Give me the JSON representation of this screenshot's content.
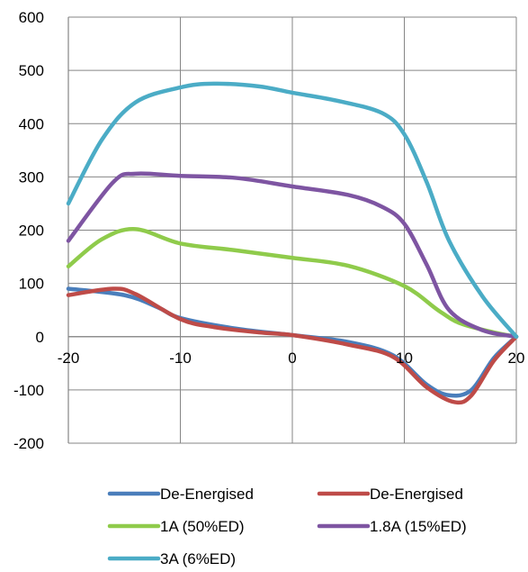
{
  "chart_data": {
    "type": "line",
    "title": "",
    "xlabel": "",
    "ylabel": "",
    "xlim": [
      -20,
      20
    ],
    "ylim": [
      -200,
      600
    ],
    "x_ticks": [
      "-20",
      "-10",
      "0",
      "10",
      "20"
    ],
    "y_ticks": [
      "600",
      "500",
      "400",
      "300",
      "200",
      "100",
      "0",
      "-100",
      "-200"
    ],
    "grid": true,
    "legend_position": "bottom",
    "series": [
      {
        "name": "De-Energised",
        "color": "#4a7ebb",
        "points": [
          [
            -20,
            90
          ],
          [
            -15,
            78
          ],
          [
            -12,
            55
          ],
          [
            -10,
            35
          ],
          [
            -5,
            15
          ],
          [
            0,
            3
          ],
          [
            5,
            -10
          ],
          [
            9,
            -35
          ],
          [
            12,
            -90
          ],
          [
            14,
            -110
          ],
          [
            16,
            -100
          ],
          [
            18,
            -40
          ],
          [
            20,
            0
          ]
        ]
      },
      {
        "name": "De-Energised",
        "color": "#be4b48",
        "points": [
          [
            -20,
            78
          ],
          [
            -16,
            90
          ],
          [
            -14,
            80
          ],
          [
            -10,
            33
          ],
          [
            -7,
            18
          ],
          [
            -3,
            8
          ],
          [
            0,
            3
          ],
          [
            5,
            -15
          ],
          [
            9,
            -38
          ],
          [
            12,
            -95
          ],
          [
            14.5,
            -123
          ],
          [
            16,
            -110
          ],
          [
            18,
            -45
          ],
          [
            20,
            0
          ]
        ]
      },
      {
        "name": "1A (50%ED)",
        "color": "#8fcb4b",
        "points": [
          [
            -20,
            132
          ],
          [
            -17,
            183
          ],
          [
            -14,
            202
          ],
          [
            -10,
            175
          ],
          [
            -5,
            162
          ],
          [
            0,
            148
          ],
          [
            5,
            133
          ],
          [
            10,
            95
          ],
          [
            13,
            50
          ],
          [
            15,
            25
          ],
          [
            18,
            8
          ],
          [
            20,
            0
          ]
        ]
      },
      {
        "name": "1.8A (15%ED)",
        "color": "#7e55a2",
        "points": [
          [
            -20,
            180
          ],
          [
            -16,
            290
          ],
          [
            -14,
            306
          ],
          [
            -10,
            302
          ],
          [
            -5,
            298
          ],
          [
            0,
            282
          ],
          [
            5,
            266
          ],
          [
            8,
            244
          ],
          [
            10,
            212
          ],
          [
            12,
            135
          ],
          [
            14,
            50
          ],
          [
            17,
            12
          ],
          [
            20,
            0
          ]
        ]
      },
      {
        "name": "3A (6%ED)",
        "color": "#4bacc6",
        "points": [
          [
            -20,
            250
          ],
          [
            -17,
            370
          ],
          [
            -14,
            440
          ],
          [
            -10,
            468
          ],
          [
            -7,
            475
          ],
          [
            -3,
            470
          ],
          [
            0,
            458
          ],
          [
            4,
            443
          ],
          [
            8,
            420
          ],
          [
            10,
            380
          ],
          [
            12,
            290
          ],
          [
            14,
            180
          ],
          [
            17,
            75
          ],
          [
            20,
            0
          ]
        ]
      }
    ]
  }
}
